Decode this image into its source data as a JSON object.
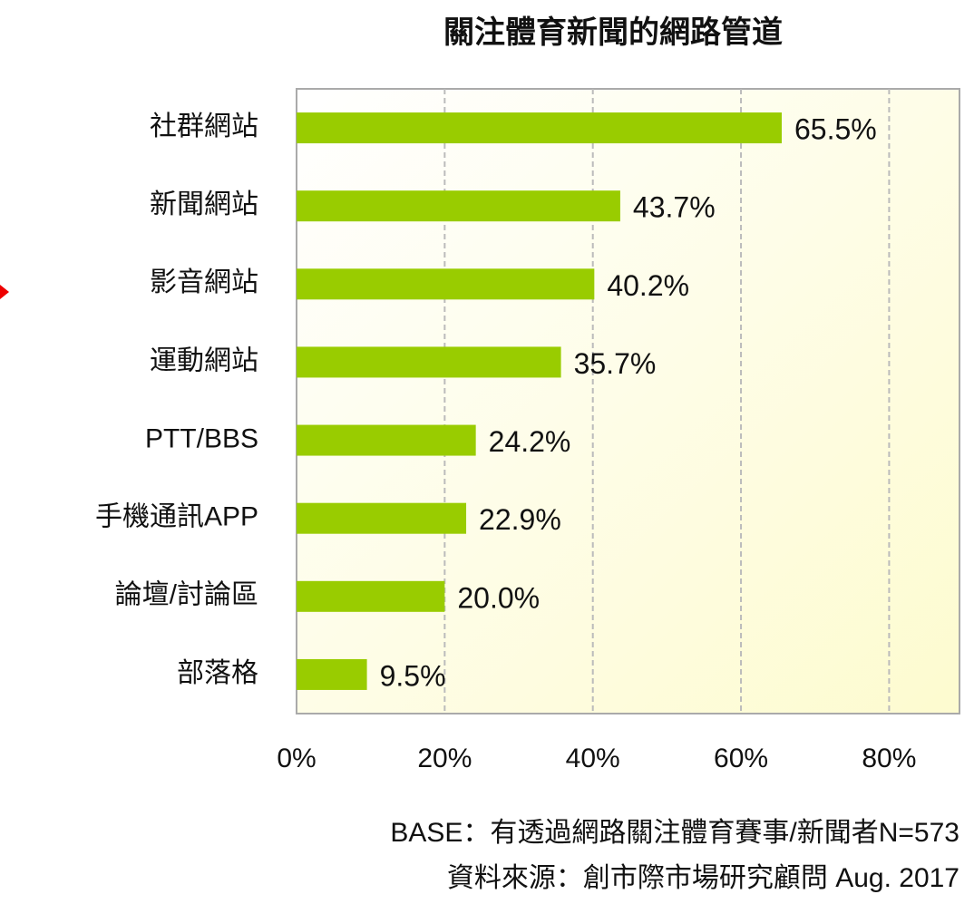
{
  "chart_data": {
    "type": "bar",
    "orientation": "horizontal",
    "title": "關注體育新聞的網路管道",
    "categories": [
      "社群網站",
      "新聞網站",
      "影音網站",
      "運動網站",
      "PTT/BBS",
      "手機通訊APP",
      "論壇/討論區",
      "部落格"
    ],
    "values": [
      65.5,
      43.7,
      40.2,
      35.7,
      24.2,
      22.9,
      20,
      9.5
    ],
    "value_labels": [
      "65.5%",
      "43.7%",
      "40.2%",
      "35.7%",
      "24.2%",
      "22.9%",
      "20.0%",
      "9.5%"
    ],
    "color": "#99cc00",
    "xlim": [
      0,
      89.5
    ],
    "xticks": [
      {
        "value": 0,
        "label": "0%"
      },
      {
        "value": 20,
        "label": "20%"
      },
      {
        "value": 40,
        "label": "40%"
      },
      {
        "value": 60,
        "label": "60%"
      },
      {
        "value": 80,
        "label": "80%"
      }
    ],
    "grid": true,
    "notes": [
      "BASE：有透過網路關注體育賽事/新聞者N=573",
      "資料來源：創市際市場研究顧問 Aug. 2017"
    ]
  }
}
